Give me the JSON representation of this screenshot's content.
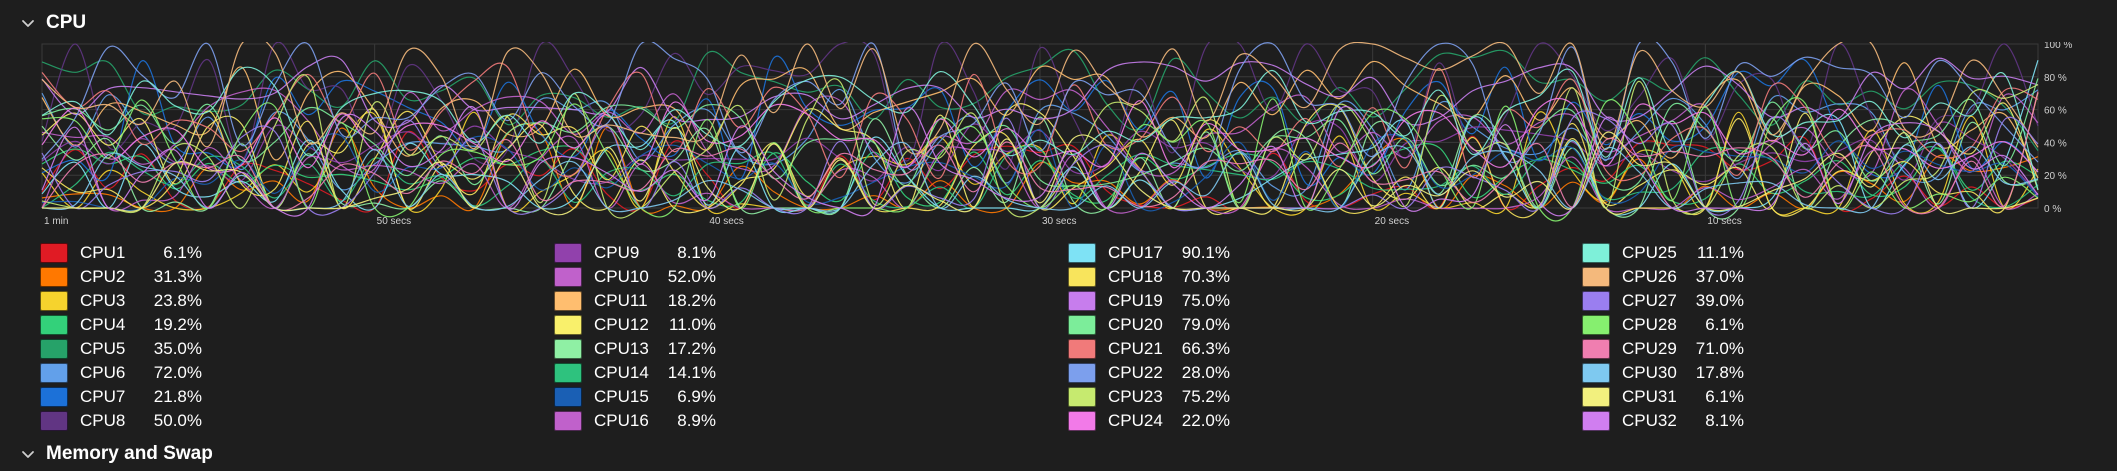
{
  "sections": {
    "cpu": {
      "title": "CPU"
    },
    "memory": {
      "title": "Memory and Swap"
    }
  },
  "icons": {
    "collapse": "chevron-down-icon"
  },
  "colors": {
    "background": "#1e1e1e",
    "grid": "#3a3a3a",
    "text": "#ffffff",
    "axis_text": "#d0d0d0"
  },
  "chart_data": {
    "type": "line",
    "title": "",
    "xlabel": "",
    "ylabel": "",
    "x_ticks": [
      "1 min",
      "50 secs",
      "40 secs",
      "30 secs",
      "20 secs",
      "10 secs"
    ],
    "y_ticks": [
      "100 %",
      "80 %",
      "60 %",
      "40 %",
      "20 %",
      "0 %"
    ],
    "xlim": [
      60,
      0
    ],
    "ylim": [
      0,
      100
    ],
    "grid": true,
    "legend": "bottom",
    "series": [
      {
        "name": "CPU1",
        "color": "#e01b24",
        "value": "6.1%",
        "current": 6.1
      },
      {
        "name": "CPU2",
        "color": "#ff7800",
        "value": "31.3%",
        "current": 31.3
      },
      {
        "name": "CPU3",
        "color": "#f6d32d",
        "value": "23.8%",
        "current": 23.8
      },
      {
        "name": "CPU4",
        "color": "#33d17a",
        "value": "19.2%",
        "current": 19.2
      },
      {
        "name": "CPU5",
        "color": "#26a269",
        "value": "35.0%",
        "current": 35.0
      },
      {
        "name": "CPU6",
        "color": "#62a0ea",
        "value": "72.0%",
        "current": 72.0
      },
      {
        "name": "CPU7",
        "color": "#1c71d8",
        "value": "21.8%",
        "current": 21.8
      },
      {
        "name": "CPU8",
        "color": "#613583",
        "value": "50.0%",
        "current": 50.0
      },
      {
        "name": "CPU9",
        "color": "#9141ac",
        "value": "8.1%",
        "current": 8.1
      },
      {
        "name": "CPU10",
        "color": "#c061cb",
        "value": "52.0%",
        "current": 52.0
      },
      {
        "name": "CPU11",
        "color": "#ffbe6f",
        "value": "18.2%",
        "current": 18.2
      },
      {
        "name": "CPU12",
        "color": "#f9f06b",
        "value": "11.0%",
        "current": 11.0
      },
      {
        "name": "CPU13",
        "color": "#8ff0a4",
        "value": "17.2%",
        "current": 17.2
      },
      {
        "name": "CPU14",
        "color": "#2ec27e",
        "value": "14.1%",
        "current": 14.1
      },
      {
        "name": "CPU15",
        "color": "#1a5fb4",
        "value": "6.9%",
        "current": 6.9
      },
      {
        "name": "CPU16",
        "color": "#c061cb",
        "value": "8.9%",
        "current": 8.9
      },
      {
        "name": "CPU17",
        "color": "#7ee2f5",
        "value": "90.1%",
        "current": 90.1
      },
      {
        "name": "CPU18",
        "color": "#f8e45c",
        "value": "70.3%",
        "current": 70.3
      },
      {
        "name": "CPU19",
        "color": "#c77ded",
        "value": "75.0%",
        "current": 75.0
      },
      {
        "name": "CPU20",
        "color": "#7ced9a",
        "value": "79.0%",
        "current": 79.0
      },
      {
        "name": "CPU21",
        "color": "#f17a7a",
        "value": "66.3%",
        "current": 66.3
      },
      {
        "name": "CPU22",
        "color": "#7c9fed",
        "value": "28.0%",
        "current": 28.0
      },
      {
        "name": "CPU23",
        "color": "#c6ea6f",
        "value": "75.2%",
        "current": 75.2
      },
      {
        "name": "CPU24",
        "color": "#f27ae8",
        "value": "22.0%",
        "current": 22.0
      },
      {
        "name": "CPU25",
        "color": "#7ef0d9",
        "value": "11.1%",
        "current": 11.1
      },
      {
        "name": "CPU26",
        "color": "#f4b97c",
        "value": "37.0%",
        "current": 37.0
      },
      {
        "name": "CPU27",
        "color": "#9a7ef0",
        "value": "39.0%",
        "current": 39.0
      },
      {
        "name": "CPU28",
        "color": "#86ef6f",
        "value": "6.1%",
        "current": 6.1
      },
      {
        "name": "CPU29",
        "color": "#f07eb0",
        "value": "71.0%",
        "current": 71.0
      },
      {
        "name": "CPU30",
        "color": "#7ec9f0",
        "value": "17.8%",
        "current": 17.8
      },
      {
        "name": "CPU31",
        "color": "#f2f07e",
        "value": "6.1%",
        "current": 6.1
      },
      {
        "name": "CPU32",
        "color": "#d07ef0",
        "value": "8.1%",
        "current": 8.1
      }
    ]
  }
}
